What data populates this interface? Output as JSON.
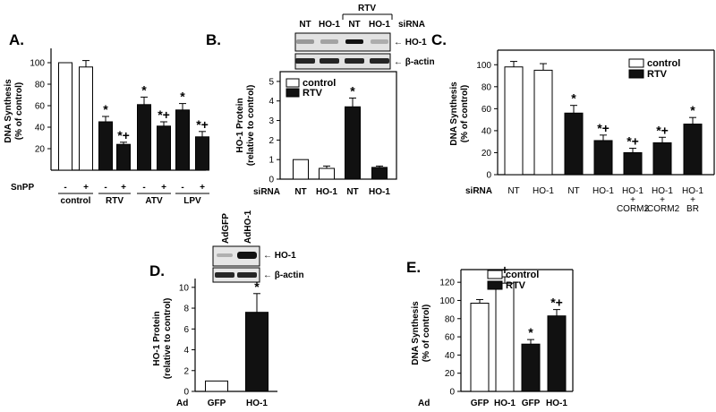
{
  "chart_data": [
    {
      "type": "bar",
      "panel": "A.",
      "ylabel": "DNA Synthesis\n(% of control)",
      "ylim": [
        0,
        110
      ],
      "yticks": [
        20,
        40,
        60,
        80,
        100
      ],
      "row_label": "SnPP",
      "bars": [
        {
          "value": 100,
          "error": 0,
          "fill": "white",
          "snpp": "-",
          "annotation": ""
        },
        {
          "value": 96,
          "error": 6,
          "fill": "white",
          "snpp": "+",
          "annotation": ""
        },
        {
          "value": 45,
          "error": 5,
          "fill": "black",
          "snpp": "-",
          "annotation": "*"
        },
        {
          "value": 24,
          "error": 2,
          "fill": "black",
          "snpp": "+",
          "annotation": "*+"
        },
        {
          "value": 61,
          "error": 7,
          "fill": "black",
          "snpp": "-",
          "annotation": "*"
        },
        {
          "value": 41,
          "error": 4,
          "fill": "black",
          "snpp": "+",
          "annotation": "*+"
        },
        {
          "value": 56,
          "error": 6,
          "fill": "black",
          "snpp": "-",
          "annotation": "*"
        },
        {
          "value": 31,
          "error": 5,
          "fill": "black",
          "snpp": "+",
          "annotation": "*+"
        }
      ],
      "groups": [
        "control",
        "RTV",
        "ATV",
        "LPV"
      ]
    },
    {
      "type": "bar",
      "panel": "B.",
      "ylabel": "HO-1 Protein\n(relative to control)",
      "ylim": [
        0,
        5.5
      ],
      "yticks": [
        0,
        1,
        2,
        3,
        4,
        5
      ],
      "row_label": "siRNA",
      "legend": [
        "control",
        "RTV"
      ],
      "categories": [
        "NT",
        "HO-1",
        "NT",
        "HO-1"
      ],
      "bars": [
        {
          "value": 1.0,
          "error": 0,
          "fill": "white",
          "annotation": ""
        },
        {
          "value": 0.55,
          "error": 0.12,
          "fill": "white",
          "annotation": ""
        },
        {
          "value": 3.7,
          "error": 0.45,
          "fill": "black",
          "annotation": "*"
        },
        {
          "value": 0.6,
          "error": 0.07,
          "fill": "black",
          "annotation": ""
        }
      ],
      "blot": {
        "group_label": "RTV",
        "lane_labels": [
          "NT",
          "HO-1",
          "NT",
          "HO-1"
        ],
        "row_label": "siRNA",
        "bands": [
          "← HO-1",
          "← β-actin"
        ]
      }
    },
    {
      "type": "bar",
      "panel": "C.",
      "ylabel": "DNA Synthesis\n(% of control)",
      "ylim": [
        0,
        110
      ],
      "yticks": [
        0,
        20,
        40,
        60,
        80,
        100
      ],
      "row_label": "siRNA",
      "legend": [
        "control",
        "RTV"
      ],
      "categories": [
        "NT",
        "HO-1",
        "NT",
        "HO-1",
        "HO-1\n+\nCORM2",
        "HO-1\n+\niCORM2",
        "HO-1\n+\nBR"
      ],
      "bars": [
        {
          "value": 98,
          "error": 5,
          "fill": "white",
          "annotation": ""
        },
        {
          "value": 95,
          "error": 6,
          "fill": "white",
          "annotation": ""
        },
        {
          "value": 56,
          "error": 7,
          "fill": "black",
          "annotation": "*"
        },
        {
          "value": 31,
          "error": 5,
          "fill": "black",
          "annotation": "*+"
        },
        {
          "value": 20,
          "error": 4,
          "fill": "black",
          "annotation": "*+"
        },
        {
          "value": 29,
          "error": 5,
          "fill": "black",
          "annotation": "*+"
        },
        {
          "value": 46,
          "error": 6,
          "fill": "black",
          "annotation": "*"
        }
      ]
    },
    {
      "type": "bar",
      "panel": "D.",
      "ylabel": "HO-1 Protein\n(relative to control)",
      "ylim": [
        0,
        10.5
      ],
      "yticks": [
        0,
        2,
        4,
        6,
        8,
        10
      ],
      "row_label": "Ad",
      "categories": [
        "GFP",
        "HO-1"
      ],
      "bars": [
        {
          "value": 1.0,
          "error": 0,
          "fill": "white",
          "annotation": ""
        },
        {
          "value": 7.6,
          "error": 1.8,
          "fill": "black",
          "annotation": "*"
        }
      ],
      "blot": {
        "lane_labels": [
          "AdGFP",
          "AdHO-1"
        ],
        "bands": [
          "← HO-1",
          "← β-actin"
        ]
      }
    },
    {
      "type": "bar",
      "panel": "E.",
      "ylabel": "DNA Synthesis\n(% of control)",
      "ylim": [
        0,
        130
      ],
      "yticks": [
        0,
        20,
        40,
        60,
        80,
        100,
        120
      ],
      "row_label": "Ad",
      "legend": [
        "control",
        "RTV"
      ],
      "categories": [
        "GFP",
        "HO-1",
        "GFP",
        "HO-1"
      ],
      "bars": [
        {
          "value": 97,
          "error": 4,
          "fill": "white",
          "annotation": ""
        },
        {
          "value": 119,
          "error": 7,
          "fill": "white",
          "annotation": "+"
        },
        {
          "value": 52,
          "error": 5,
          "fill": "black",
          "annotation": "*"
        },
        {
          "value": 83,
          "error": 7,
          "fill": "black",
          "annotation": "*+"
        }
      ]
    }
  ]
}
